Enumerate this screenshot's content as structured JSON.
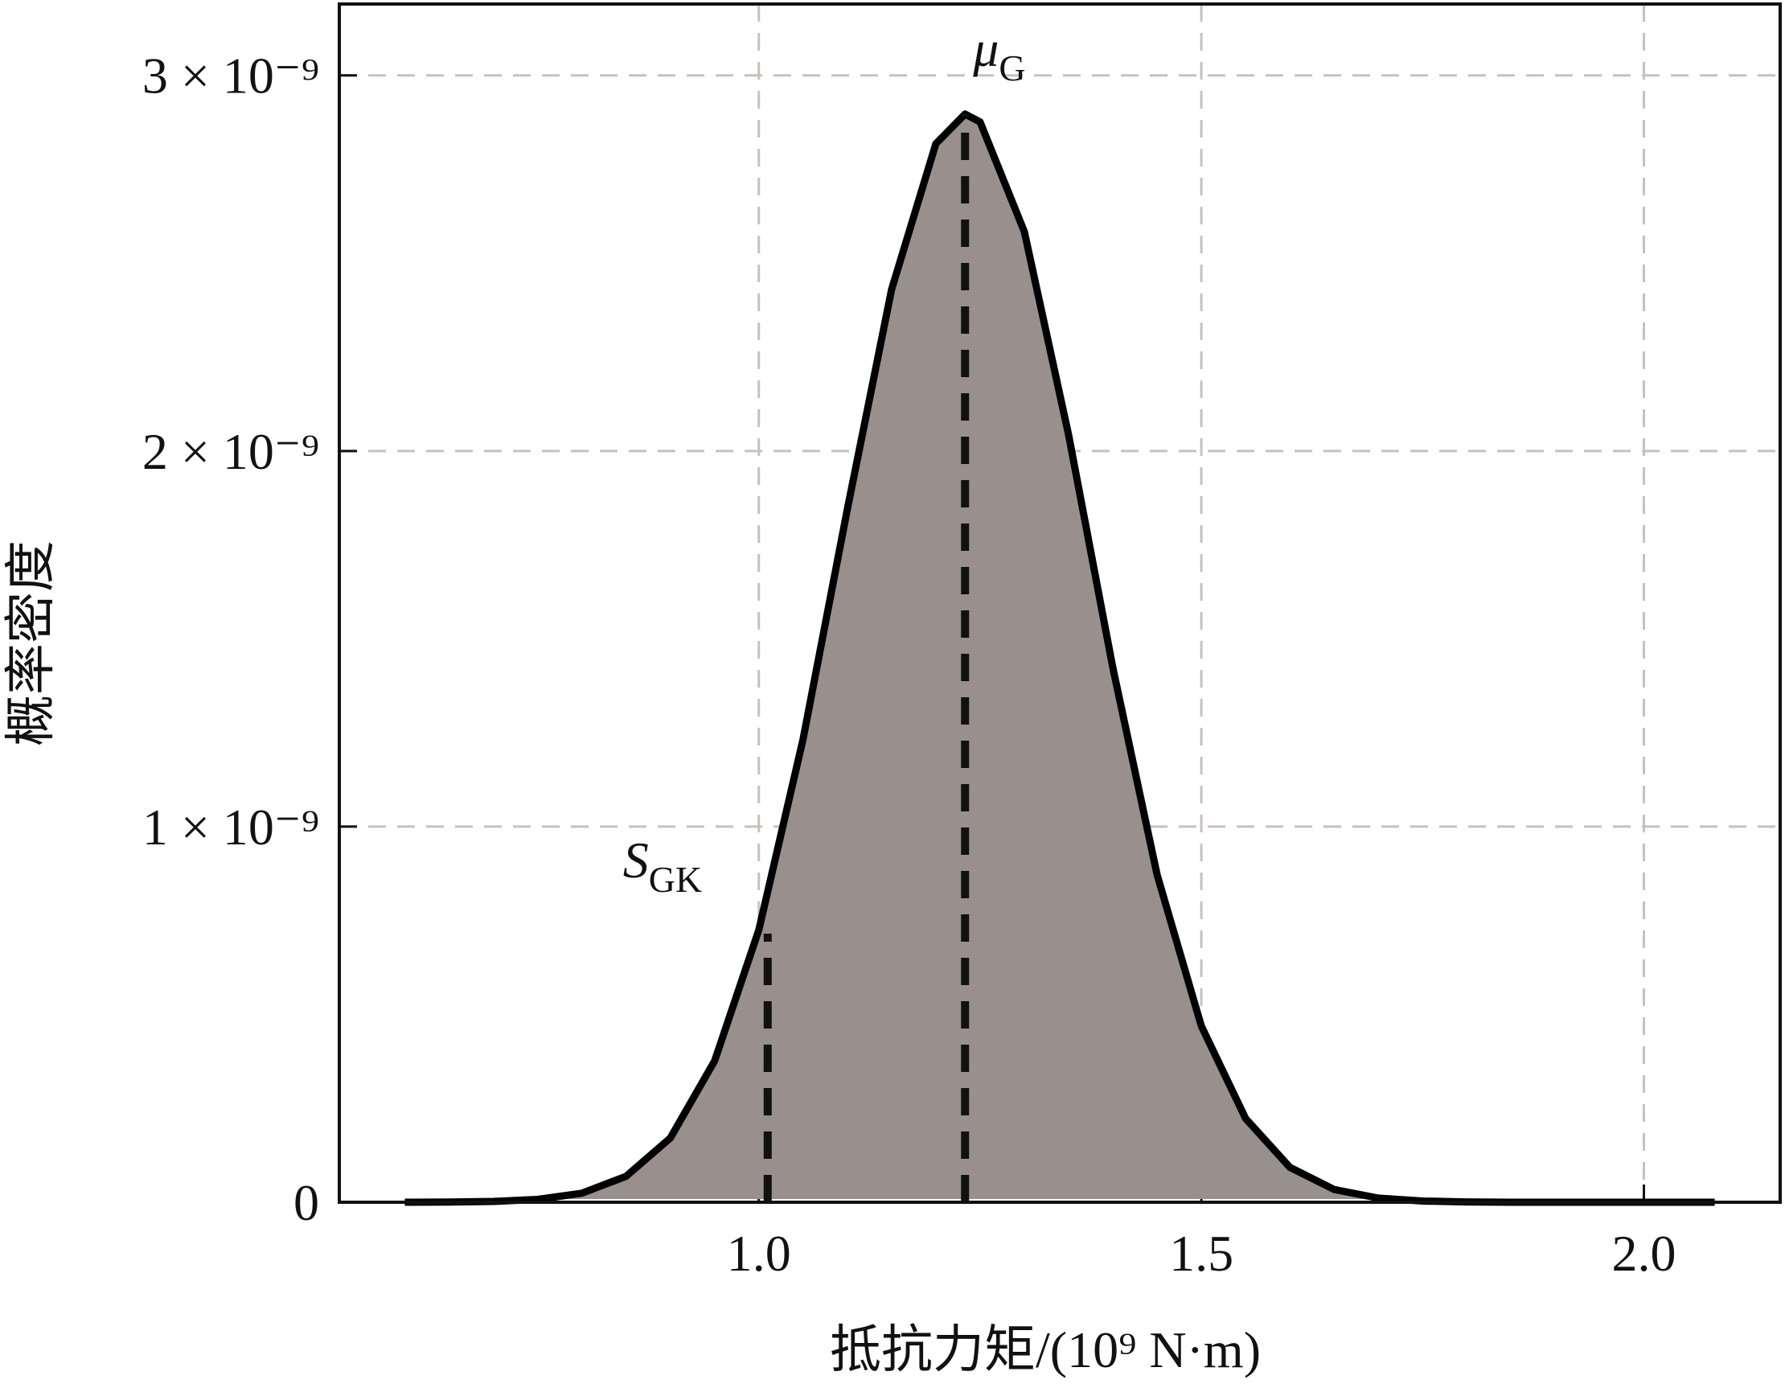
{
  "chart_data": {
    "type": "area",
    "x_label": "抵抗力矩/(10⁹ N·m)",
    "y_label": "概率密度",
    "xlim": [
      0.526,
      2.154
    ],
    "ylim": [
      0,
      3.19e-09
    ],
    "xticks": [
      {
        "value": 1,
        "label": "1.0"
      },
      1.5,
      {
        "value": 2,
        "label": "2.0"
      }
    ],
    "yticks": [
      0,
      {
        "value": 1e-09,
        "label": "1 × 10⁻⁹"
      },
      {
        "value": 2e-09,
        "label": "2 × 10⁻⁹"
      },
      {
        "value": 3e-09,
        "label": "3 × 10⁻⁹"
      }
    ],
    "grid": true,
    "series": [
      {
        "color": "#000000",
        "fill": "#998f8d",
        "x": [
          0.6,
          0.65,
          0.7,
          0.75,
          0.8,
          0.85,
          0.9,
          0.95,
          1.0,
          1.05,
          1.1,
          1.15,
          1.2,
          1.233,
          1.25,
          1.3,
          1.35,
          1.4,
          1.45,
          1.5,
          1.55,
          1.6,
          1.65,
          1.7,
          1.75,
          1.8,
          1.85,
          1.9,
          1.95,
          2.0,
          2.05,
          2.08
        ],
        "values": [
          1e-13,
          5e-13,
          2.1e-12,
          7.5e-12,
          2.4e-11,
          6.9e-11,
          1.71e-10,
          3.76e-10,
          7.25e-10,
          1.233e-09,
          1.845e-09,
          2.43e-09,
          2.818e-09,
          2.897e-09,
          2.876e-09,
          2.584e-09,
          2.043e-09,
          1.423e-09,
          8.72e-10,
          4.69e-10,
          2.23e-10,
          9.3e-11,
          3.4e-11,
          1.1e-11,
          3.2e-12,
          8e-13,
          0,
          0,
          0,
          0,
          0,
          0
        ]
      }
    ],
    "annotations": [
      {
        "label": "S",
        "subscript": "GK",
        "x": 1.01,
        "y": 7.15e-10
      },
      {
        "label": "μ",
        "subscript": "G",
        "x": 1.233,
        "y": 2.897e-09
      }
    ]
  }
}
